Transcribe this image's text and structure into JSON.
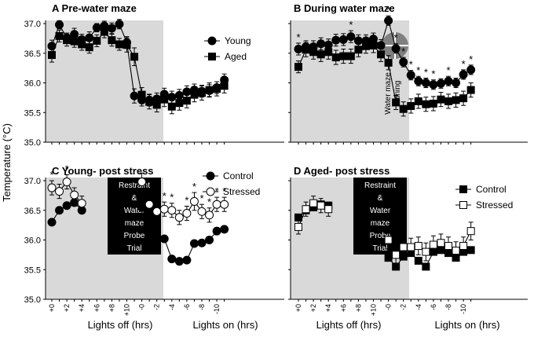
{
  "figure": {
    "ylabel": "Temperature (°C)",
    "xlabel_off": "Lights off (hrs)",
    "xlabel_on": "Lights on (hrs)"
  },
  "chart_data": [
    {
      "panel": "A",
      "title": "Pre-water maze",
      "type": "line",
      "ylim": [
        35.0,
        37.0
      ],
      "yticks": [
        "35.0",
        "35.5",
        "36.0",
        "36.5",
        "37.0"
      ],
      "x_index_range": [
        0,
        23
      ],
      "series": [
        {
          "name": "Young",
          "marker": "filled-circle",
          "values": [
            36.62,
            36.98,
            36.76,
            36.82,
            36.73,
            36.76,
            36.93,
            36.96,
            36.92,
            36.99,
            36.68,
            35.78,
            35.71,
            35.71,
            35.73,
            35.81,
            35.76,
            35.79,
            35.85,
            35.88,
            35.86,
            35.87,
            35.92,
            36.05
          ],
          "errors": [
            0.1,
            0.07,
            0.08,
            0.1,
            0.09,
            0.1,
            0.07,
            0.08,
            0.09,
            0.08,
            0.1,
            0.12,
            0.1,
            0.1,
            0.1,
            0.1,
            0.1,
            0.1,
            0.1,
            0.1,
            0.1,
            0.1,
            0.1,
            0.1
          ]
        },
        {
          "name": "Aged",
          "marker": "filled-square",
          "values": [
            36.47,
            36.79,
            36.72,
            36.7,
            36.65,
            36.6,
            36.71,
            36.86,
            36.72,
            36.65,
            36.64,
            36.44,
            35.8,
            35.68,
            35.63,
            35.72,
            35.6,
            35.66,
            35.7,
            35.8,
            35.83,
            35.88,
            35.9,
            35.95
          ],
          "errors": [
            0.12,
            0.1,
            0.1,
            0.1,
            0.1,
            0.1,
            0.1,
            0.1,
            0.1,
            0.1,
            0.12,
            0.15,
            0.12,
            0.12,
            0.12,
            0.12,
            0.12,
            0.12,
            0.12,
            0.12,
            0.12,
            0.12,
            0.12,
            0.12
          ]
        }
      ],
      "legend": [
        "Young",
        "Aged"
      ]
    },
    {
      "panel": "B",
      "title": "During water maze",
      "type": "line",
      "ylim": [
        35.0,
        37.0
      ],
      "x_index_range": [
        0,
        23
      ],
      "annotation": "Water maze training",
      "series": [
        {
          "name": "Young",
          "marker": "filled-circle",
          "values": [
            36.57,
            36.61,
            36.61,
            36.66,
            36.64,
            36.72,
            36.73,
            36.78,
            36.71,
            36.71,
            36.74,
            36.63,
            37.05,
            36.58,
            36.35,
            36.13,
            36.03,
            36.0,
            35.97,
            35.99,
            36.03,
            36.0,
            36.14,
            36.22
          ],
          "errors": [
            0.1,
            0.1,
            0.1,
            0.1,
            0.1,
            0.1,
            0.1,
            0.1,
            0.1,
            0.1,
            0.1,
            0.1,
            0.08,
            0.08,
            0.08,
            0.08,
            0.08,
            0.08,
            0.08,
            0.08,
            0.08,
            0.08,
            0.08,
            0.08
          ]
        },
        {
          "name": "Aged",
          "marker": "filled-square",
          "values": [
            36.27,
            36.56,
            36.52,
            36.48,
            36.52,
            36.43,
            36.45,
            36.45,
            36.56,
            36.62,
            36.63,
            36.48,
            36.34,
            35.67,
            35.56,
            35.61,
            35.69,
            35.64,
            35.65,
            35.72,
            35.69,
            35.71,
            35.74,
            35.88
          ],
          "errors": [
            0.1,
            0.12,
            0.12,
            0.12,
            0.12,
            0.12,
            0.12,
            0.12,
            0.12,
            0.12,
            0.12,
            0.12,
            0.12,
            0.12,
            0.12,
            0.12,
            0.12,
            0.12,
            0.12,
            0.12,
            0.12,
            0.12,
            0.12,
            0.12
          ]
        }
      ],
      "significance": {
        "symbol": "*",
        "indices": [
          0,
          7,
          12,
          13,
          14,
          15,
          16,
          17,
          18,
          20,
          22,
          23
        ]
      }
    },
    {
      "panel": "C",
      "title": "Young- post stress",
      "type": "line",
      "ylim": [
        35.0,
        37.0
      ],
      "x_index_range": [
        0,
        23
      ],
      "annotation": "Restraint & Water maze Probe Trial",
      "segments": [
        [
          0,
          4
        ],
        [
          12,
          23
        ]
      ],
      "series": [
        {
          "name": "Control",
          "marker": "filled-circle",
          "values": [
            36.3,
            36.5,
            36.58,
            36.63,
            36.5,
            null,
            null,
            null,
            null,
            null,
            null,
            null,
            36.55,
            36.25,
            36.02,
            36.02,
            35.68,
            35.64,
            35.66,
            35.94,
            35.95,
            36.0,
            36.15,
            36.18
          ],
          "errors": [
            0.05,
            0.05,
            0.05,
            0.05,
            0.05,
            null,
            null,
            null,
            null,
            null,
            null,
            null,
            0.05,
            0.05,
            0.05,
            0.05,
            0.05,
            0.05,
            0.05,
            0.05,
            0.05,
            0.05,
            0.05,
            0.05
          ]
        },
        {
          "name": "Stressed",
          "marker": "open-circle",
          "values": [
            36.88,
            36.82,
            36.98,
            36.76,
            36.62,
            null,
            null,
            null,
            null,
            null,
            null,
            null,
            36.98,
            36.6,
            36.48,
            36.52,
            36.5,
            36.38,
            36.45,
            36.65,
            36.48,
            36.42,
            36.6,
            36.6
          ],
          "errors": [
            0.12,
            0.12,
            0.12,
            0.12,
            0.12,
            null,
            null,
            null,
            null,
            null,
            null,
            null,
            0.15,
            0.12,
            0.12,
            0.12,
            0.12,
            0.12,
            0.12,
            0.15,
            0.12,
            0.12,
            0.12,
            0.12
          ]
        }
      ],
      "significance": {
        "symbol": "*",
        "indices": [
          0,
          2,
          15,
          16,
          18,
          19,
          20,
          21,
          22,
          23
        ]
      },
      "legend": [
        "Control",
        "Stressed"
      ]
    },
    {
      "panel": "D",
      "title": "Aged- post stress",
      "type": "line",
      "ylim": [
        35.0,
        37.0
      ],
      "x_index_range": [
        0,
        23
      ],
      "annotation": "Restraint & Water maze Probe Trial",
      "segments": [
        [
          0,
          4
        ],
        [
          12,
          23
        ]
      ],
      "series": [
        {
          "name": "Control",
          "marker": "filled-square",
          "values": [
            36.38,
            36.5,
            36.55,
            36.6,
            36.58,
            null,
            null,
            null,
            null,
            null,
            null,
            null,
            35.7,
            35.55,
            35.72,
            35.78,
            35.65,
            35.55,
            35.8,
            35.83,
            35.78,
            35.7,
            35.8,
            35.83
          ],
          "errors": [
            0.05,
            0.05,
            0.05,
            0.05,
            0.05,
            null,
            null,
            null,
            null,
            null,
            null,
            null,
            0.05,
            0.05,
            0.05,
            0.05,
            0.05,
            0.05,
            0.05,
            0.05,
            0.05,
            0.05,
            0.05,
            0.05
          ]
        },
        {
          "name": "Stressed",
          "marker": "open-square",
          "values": [
            36.22,
            36.52,
            36.62,
            36.58,
            36.52,
            null,
            null,
            null,
            null,
            null,
            null,
            null,
            36.0,
            35.75,
            35.88,
            35.88,
            35.9,
            35.8,
            35.92,
            35.95,
            35.9,
            35.82,
            35.9,
            36.15
          ],
          "errors": [
            0.12,
            0.12,
            0.12,
            0.12,
            0.12,
            null,
            null,
            null,
            null,
            null,
            null,
            null,
            0.15,
            0.15,
            0.15,
            0.15,
            0.15,
            0.15,
            0.15,
            0.15,
            0.15,
            0.15,
            0.15,
            0.15
          ]
        }
      ],
      "legend": [
        "Control",
        "Stressed"
      ]
    }
  ],
  "x_tick_labels": [
    "+0",
    "+2",
    "+4",
    "+6",
    "+8",
    "+10",
    "-0",
    "-2",
    "-4",
    "-6",
    "-8",
    "-10"
  ]
}
